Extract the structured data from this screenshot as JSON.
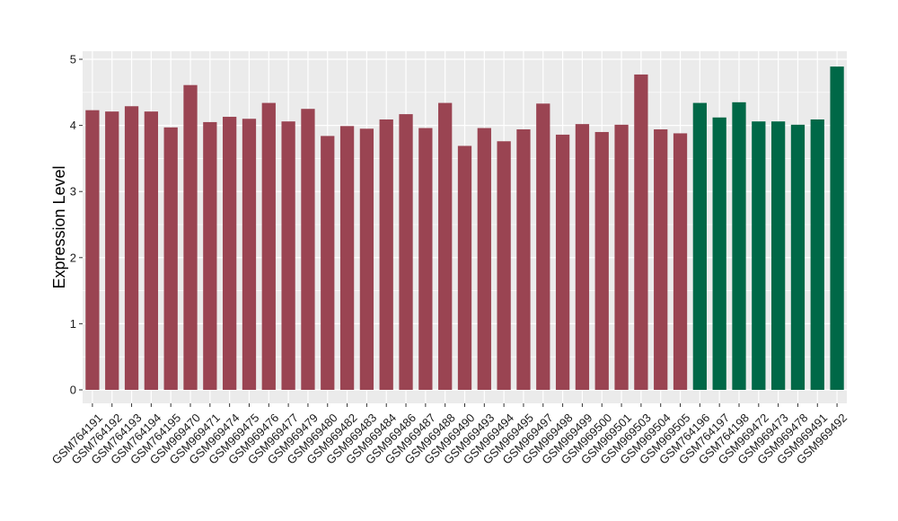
{
  "chart_data": {
    "type": "bar",
    "title": "",
    "xlabel": "",
    "ylabel": "Expression Level",
    "ylim": [
      0,
      5
    ],
    "yticks": [
      "0",
      "1",
      "2",
      "3",
      "4",
      "5"
    ],
    "grid": true,
    "colors": {
      "group_a": "#9a4452",
      "group_b": "#006847",
      "panel": "#ebebeb",
      "grid": "#ffffff"
    },
    "categories": [
      "GSM764191",
      "GSM764192",
      "GSM764193",
      "GSM764194",
      "GSM764195",
      "GSM969470",
      "GSM969471",
      "GSM969474",
      "GSM969475",
      "GSM969476",
      "GSM969477",
      "GSM969479",
      "GSM969480",
      "GSM969482",
      "GSM969483",
      "GSM969484",
      "GSM969486",
      "GSM969487",
      "GSM969488",
      "GSM969490",
      "GSM969493",
      "GSM969494",
      "GSM969495",
      "GSM969497",
      "GSM969498",
      "GSM969499",
      "GSM969500",
      "GSM969501",
      "GSM969503",
      "GSM969504",
      "GSM969505",
      "GSM764196",
      "GSM764197",
      "GSM764198",
      "GSM969472",
      "GSM969473",
      "GSM969478",
      "GSM969491",
      "GSM969492"
    ],
    "values": [
      4.23,
      4.21,
      4.29,
      4.21,
      3.97,
      4.61,
      4.05,
      4.13,
      4.1,
      4.34,
      4.06,
      4.25,
      3.84,
      3.99,
      3.95,
      4.09,
      4.17,
      3.96,
      4.34,
      3.69,
      3.96,
      3.76,
      3.94,
      4.33,
      3.86,
      4.02,
      3.9,
      4.01,
      4.77,
      3.94,
      3.88,
      4.34,
      4.12,
      4.35,
      4.06,
      4.06,
      4.01,
      4.09,
      4.89
    ],
    "groups": [
      "a",
      "a",
      "a",
      "a",
      "a",
      "a",
      "a",
      "a",
      "a",
      "a",
      "a",
      "a",
      "a",
      "a",
      "a",
      "a",
      "a",
      "a",
      "a",
      "a",
      "a",
      "a",
      "a",
      "a",
      "a",
      "a",
      "a",
      "a",
      "a",
      "a",
      "a",
      "b",
      "b",
      "b",
      "b",
      "b",
      "b",
      "b",
      "b"
    ]
  }
}
